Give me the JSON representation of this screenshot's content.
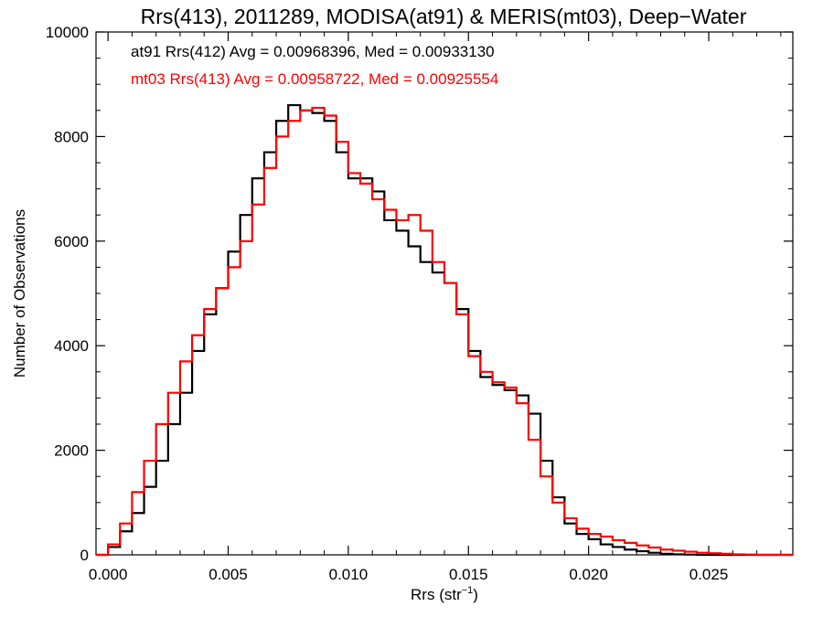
{
  "chart_data": {
    "type": "line",
    "title": "Rrs(413), 2011289, MODISA(at91) & MERIS(mt03), Deep−Water",
    "xlabel_main": "Rrs (str",
    "xlabel_sup": "−1",
    "xlabel_close": ")",
    "ylabel": "Number of Observations",
    "xlim": [
      -0.0005,
      0.0285
    ],
    "ylim": [
      0,
      10000
    ],
    "x_ticks": [
      0.0,
      0.005,
      0.01,
      0.015,
      0.02,
      0.025
    ],
    "x_tick_labels": [
      "0.000",
      "0.005",
      "0.010",
      "0.015",
      "0.020",
      "0.025"
    ],
    "y_ticks": [
      0,
      2000,
      4000,
      6000,
      8000,
      10000
    ],
    "y_tick_labels": [
      "0",
      "2000",
      "4000",
      "6000",
      "8000",
      "10000"
    ],
    "series": [
      {
        "name": "at91 Rrs(412)",
        "color": "#000000",
        "legend_text": "at91 Rrs(412) Avg = 0.00968396, Med = 0.00933130",
        "x": [
          -0.0005,
          0.0,
          0.0005,
          0.001,
          0.0015,
          0.002,
          0.0025,
          0.003,
          0.0035,
          0.004,
          0.0045,
          0.005,
          0.0055,
          0.006,
          0.0065,
          0.007,
          0.0075,
          0.008,
          0.0085,
          0.009,
          0.0095,
          0.01,
          0.0105,
          0.011,
          0.0115,
          0.012,
          0.0125,
          0.013,
          0.0135,
          0.014,
          0.0145,
          0.015,
          0.0155,
          0.016,
          0.0165,
          0.017,
          0.0175,
          0.018,
          0.0185,
          0.019,
          0.0195,
          0.02,
          0.0205,
          0.021,
          0.0215,
          0.022,
          0.0225,
          0.023,
          0.0235,
          0.024,
          0.0245,
          0.025,
          0.0255,
          0.026,
          0.0265,
          0.027,
          0.0275,
          0.028,
          0.0285
        ],
        "y": [
          0,
          150,
          450,
          800,
          1300,
          1800,
          2500,
          3100,
          3900,
          4600,
          5100,
          5800,
          6500,
          7200,
          7700,
          8300,
          8600,
          8500,
          8450,
          8300,
          7700,
          7200,
          7200,
          6950,
          6400,
          6200,
          5900,
          5600,
          5400,
          5200,
          4700,
          3900,
          3400,
          3250,
          3150,
          3050,
          2700,
          1800,
          1100,
          600,
          400,
          300,
          200,
          150,
          100,
          70,
          40,
          20,
          10,
          5,
          0,
          0,
          0,
          0,
          0,
          0,
          0,
          0,
          0
        ]
      },
      {
        "name": "mt03 Rrs(413)",
        "color": "#ff0000",
        "legend_text": "mt03 Rrs(413) Avg = 0.00958722, Med = 0.00925554",
        "x": [
          -0.0005,
          0.0,
          0.0005,
          0.001,
          0.0015,
          0.002,
          0.0025,
          0.003,
          0.0035,
          0.004,
          0.0045,
          0.005,
          0.0055,
          0.006,
          0.0065,
          0.007,
          0.0075,
          0.008,
          0.0085,
          0.009,
          0.0095,
          0.01,
          0.0105,
          0.011,
          0.0115,
          0.012,
          0.0125,
          0.013,
          0.0135,
          0.014,
          0.0145,
          0.015,
          0.0155,
          0.016,
          0.0165,
          0.017,
          0.0175,
          0.018,
          0.0185,
          0.019,
          0.0195,
          0.02,
          0.0205,
          0.021,
          0.0215,
          0.022,
          0.0225,
          0.023,
          0.0235,
          0.024,
          0.0245,
          0.025,
          0.0255,
          0.026,
          0.0265,
          0.027,
          0.0275,
          0.028,
          0.0285
        ],
        "y": [
          0,
          200,
          600,
          1200,
          1800,
          2500,
          3100,
          3700,
          4200,
          4700,
          5100,
          5500,
          6000,
          6700,
          7400,
          8000,
          8300,
          8500,
          8550,
          8400,
          7900,
          7300,
          7100,
          6800,
          6600,
          6400,
          6500,
          6200,
          5600,
          5200,
          4600,
          3800,
          3500,
          3300,
          3200,
          2900,
          2200,
          1500,
          1000,
          700,
          500,
          400,
          350,
          280,
          230,
          180,
          140,
          100,
          80,
          60,
          40,
          30,
          20,
          10,
          5,
          0,
          0,
          0,
          0
        ]
      }
    ],
    "grid": false,
    "legend_placement": "top-left"
  }
}
